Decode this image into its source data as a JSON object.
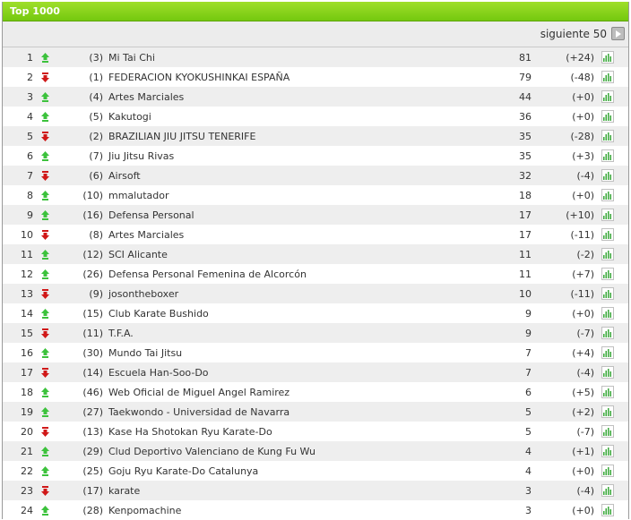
{
  "panel": {
    "title": "Top 1000",
    "next_label": "siguiente 50"
  },
  "colors": {
    "up": "#3cc23c",
    "down": "#d01818",
    "header": "#8ad31d"
  },
  "rows": [
    {
      "pos": "1",
      "dir": "up",
      "prev": "(3)",
      "name": "Mi Tai Chi",
      "score": "81",
      "diff": "(+24)"
    },
    {
      "pos": "2",
      "dir": "down",
      "prev": "(1)",
      "name": "FEDERACION KYOKUSHINKAI ESPAÑA",
      "score": "79",
      "diff": "(-48)"
    },
    {
      "pos": "3",
      "dir": "up",
      "prev": "(4)",
      "name": "Artes Marciales",
      "score": "44",
      "diff": "(+0)"
    },
    {
      "pos": "4",
      "dir": "up",
      "prev": "(5)",
      "name": "Kakutogi",
      "score": "36",
      "diff": "(+0)"
    },
    {
      "pos": "5",
      "dir": "down",
      "prev": "(2)",
      "name": "BRAZILIAN JIU JITSU TENERIFE",
      "score": "35",
      "diff": "(-28)"
    },
    {
      "pos": "6",
      "dir": "up",
      "prev": "(7)",
      "name": "Jiu Jitsu Rivas",
      "score": "35",
      "diff": "(+3)"
    },
    {
      "pos": "7",
      "dir": "down",
      "prev": "(6)",
      "name": "Airsoft",
      "score": "32",
      "diff": "(-4)"
    },
    {
      "pos": "8",
      "dir": "up",
      "prev": "(10)",
      "name": "mmalutador",
      "score": "18",
      "diff": "(+0)"
    },
    {
      "pos": "9",
      "dir": "up",
      "prev": "(16)",
      "name": "Defensa Personal",
      "score": "17",
      "diff": "(+10)"
    },
    {
      "pos": "10",
      "dir": "down",
      "prev": "(8)",
      "name": "Artes Marciales",
      "score": "17",
      "diff": "(-11)"
    },
    {
      "pos": "11",
      "dir": "up",
      "prev": "(12)",
      "name": "SCI Alicante",
      "score": "11",
      "diff": "(-2)"
    },
    {
      "pos": "12",
      "dir": "up",
      "prev": "(26)",
      "name": "Defensa Personal Femenina de Alcorcón",
      "score": "11",
      "diff": "(+7)"
    },
    {
      "pos": "13",
      "dir": "down",
      "prev": "(9)",
      "name": "josontheboxer",
      "score": "10",
      "diff": "(-11)"
    },
    {
      "pos": "14",
      "dir": "up",
      "prev": "(15)",
      "name": "Club Karate Bushido",
      "score": "9",
      "diff": "(+0)"
    },
    {
      "pos": "15",
      "dir": "down",
      "prev": "(11)",
      "name": "T.F.A.",
      "score": "9",
      "diff": "(-7)"
    },
    {
      "pos": "16",
      "dir": "up",
      "prev": "(30)",
      "name": "Mundo Tai Jitsu",
      "score": "7",
      "diff": "(+4)"
    },
    {
      "pos": "17",
      "dir": "down",
      "prev": "(14)",
      "name": "Escuela Han-Soo-Do",
      "score": "7",
      "diff": "(-4)"
    },
    {
      "pos": "18",
      "dir": "up",
      "prev": "(46)",
      "name": "Web Oficial de Miguel Angel Ramirez",
      "score": "6",
      "diff": "(+5)"
    },
    {
      "pos": "19",
      "dir": "up",
      "prev": "(27)",
      "name": "Taekwondo - Universidad de Navarra",
      "score": "5",
      "diff": "(+2)"
    },
    {
      "pos": "20",
      "dir": "down",
      "prev": "(13)",
      "name": "Kase Ha Shotokan Ryu Karate-Do",
      "score": "5",
      "diff": "(-7)"
    },
    {
      "pos": "21",
      "dir": "up",
      "prev": "(29)",
      "name": "Clud Deportivo Valenciano de Kung Fu Wu",
      "score": "4",
      "diff": "(+1)"
    },
    {
      "pos": "22",
      "dir": "up",
      "prev": "(25)",
      "name": "Goju Ryu Karate-Do Catalunya",
      "score": "4",
      "diff": "(+0)"
    },
    {
      "pos": "23",
      "dir": "down",
      "prev": "(17)",
      "name": "karate",
      "score": "3",
      "diff": "(-4)"
    },
    {
      "pos": "24",
      "dir": "up",
      "prev": "(28)",
      "name": "Kenpomachine",
      "score": "3",
      "diff": "(+0)"
    }
  ]
}
